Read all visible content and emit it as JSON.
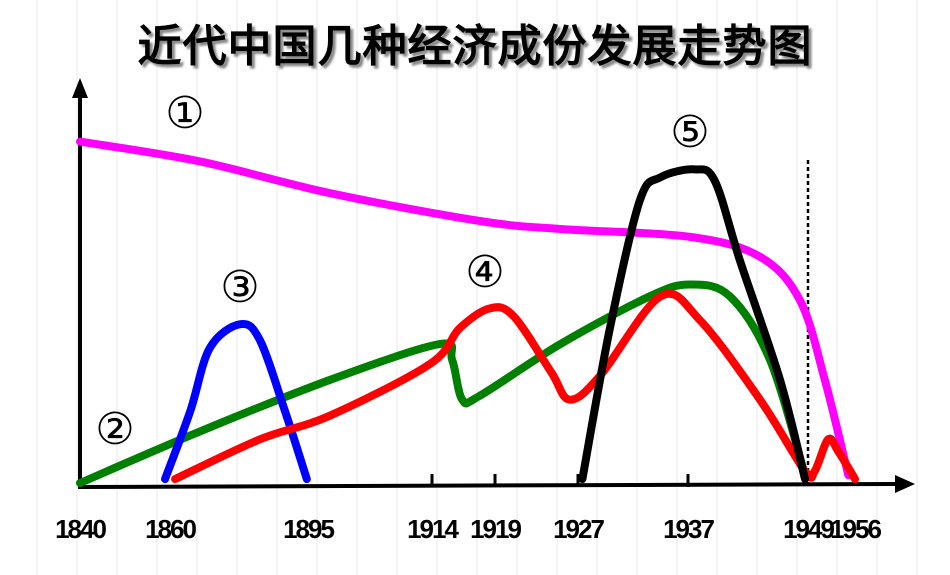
{
  "title": "近代中国几种经济成份发展走势图",
  "chart_data": {
    "type": "line",
    "title": "近代中国几种经济成份发展走势图",
    "xlabel": "",
    "ylabel": "",
    "x_ticks": [
      "1840",
      "1860",
      "1895",
      "1914",
      "1919",
      "1927",
      "1937",
      "1949",
      "1956"
    ],
    "ylim": [
      0,
      100
    ],
    "grid": false,
    "reference_line": {
      "x": 1949,
      "style": "dashed",
      "color": "#000000"
    },
    "series": [
      {
        "name": "①",
        "color": "#ff00ff",
        "x": [
          1840,
          1867.6,
          1898.4,
          1917.8,
          1925.3,
          1937.2,
          1944.2,
          1948.2,
          1951.5,
          1955
        ],
        "y": [
          87,
          82,
          74,
          67,
          65,
          63,
          58,
          47,
          27,
          3
        ]
      },
      {
        "name": "②",
        "color": "#008000",
        "x": [
          1840,
          1867.6,
          1898.4,
          1914.6,
          1915.6,
          1916.4,
          1917.8,
          1925.3,
          1933.5,
          1937.2,
          1941.2,
          1945.2,
          1948.7
        ],
        "y": [
          1,
          14,
          27,
          36,
          32,
          22,
          23,
          36,
          48,
          51,
          48,
          32,
          3
        ]
      },
      {
        "name": "③",
        "color": "#0000ff",
        "x": [
          1858.9,
          1865.1,
          1870.1,
          1877.8,
          1882.8,
          1889.2,
          1894.7
        ],
        "y": [
          2,
          19,
          35,
          41,
          37,
          19,
          2
        ]
      },
      {
        "name": "④",
        "color": "#ff0000",
        "x": [
          1861.3,
          1882.8,
          1898.4,
          1913.7,
          1916.2,
          1918.6,
          1920.8,
          1924.4,
          1926.2,
          1929,
          1934.5,
          1938.2,
          1944.2,
          1948.7,
          1950,
          1952,
          1953.5,
          1956
        ],
        "y": [
          2,
          12,
          18,
          31,
          40,
          45,
          43,
          29,
          22,
          28,
          48,
          42,
          22,
          4,
          4,
          12,
          9,
          2
        ]
      },
      {
        "name": "⑤",
        "color": "#000000",
        "x": [
          1927.4,
          1929.9,
          1932.6,
          1934.5,
          1937.7,
          1939.7,
          1942.2,
          1946.2,
          1948.7
        ],
        "y": [
          2,
          40,
          72,
          78,
          80,
          77,
          57,
          27,
          2
        ]
      }
    ]
  }
}
